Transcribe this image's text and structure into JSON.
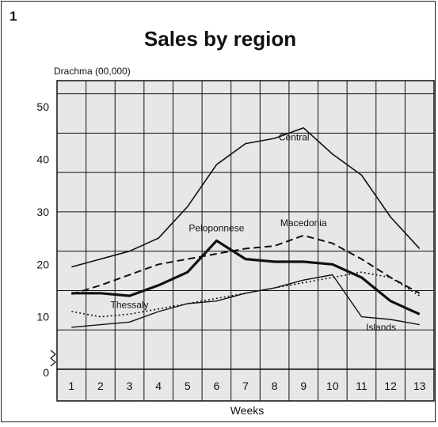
{
  "page_number": "1",
  "chart_data": {
    "type": "line",
    "title": "Sales by region",
    "ylabel": "Drachma (00,000)",
    "xlabel": "Weeks",
    "ylim": [
      0,
      55
    ],
    "y_ticks": [
      "0",
      "10",
      "20",
      "30",
      "40",
      "50"
    ],
    "categories": [
      "1",
      "2",
      "3",
      "4",
      "5",
      "6",
      "7",
      "8",
      "9",
      "10",
      "11",
      "12",
      "13"
    ],
    "grid": true,
    "series": [
      {
        "name": "Central",
        "style": "solid-thin",
        "values": [
          19.5,
          21,
          22.5,
          25,
          31,
          39,
          43,
          44,
          46,
          41,
          37,
          29,
          23
        ]
      },
      {
        "name": "Macedonia",
        "style": "dashed",
        "values": [
          14.3,
          16,
          18,
          20,
          21,
          22,
          23,
          23.5,
          25.5,
          24,
          21,
          17.5,
          14.5
        ]
      },
      {
        "name": "Peloponnese",
        "style": "solid-thick",
        "values": [
          14.5,
          14.5,
          14,
          16,
          18.5,
          24.5,
          21,
          20.5,
          20.5,
          20,
          17.5,
          13,
          10.5
        ]
      },
      {
        "name": "Thessaly",
        "style": "dotted",
        "values": [
          11,
          10,
          10.5,
          11.5,
          12.5,
          13.5,
          14.5,
          15.5,
          16.5,
          17.5,
          18.5,
          17.5,
          14
        ]
      },
      {
        "name": "Islands",
        "style": "solid-medium",
        "values": [
          8,
          8.5,
          9,
          11,
          12.5,
          13,
          14.5,
          15.5,
          17,
          18,
          10,
          9.5,
          8.5
        ]
      }
    ]
  }
}
